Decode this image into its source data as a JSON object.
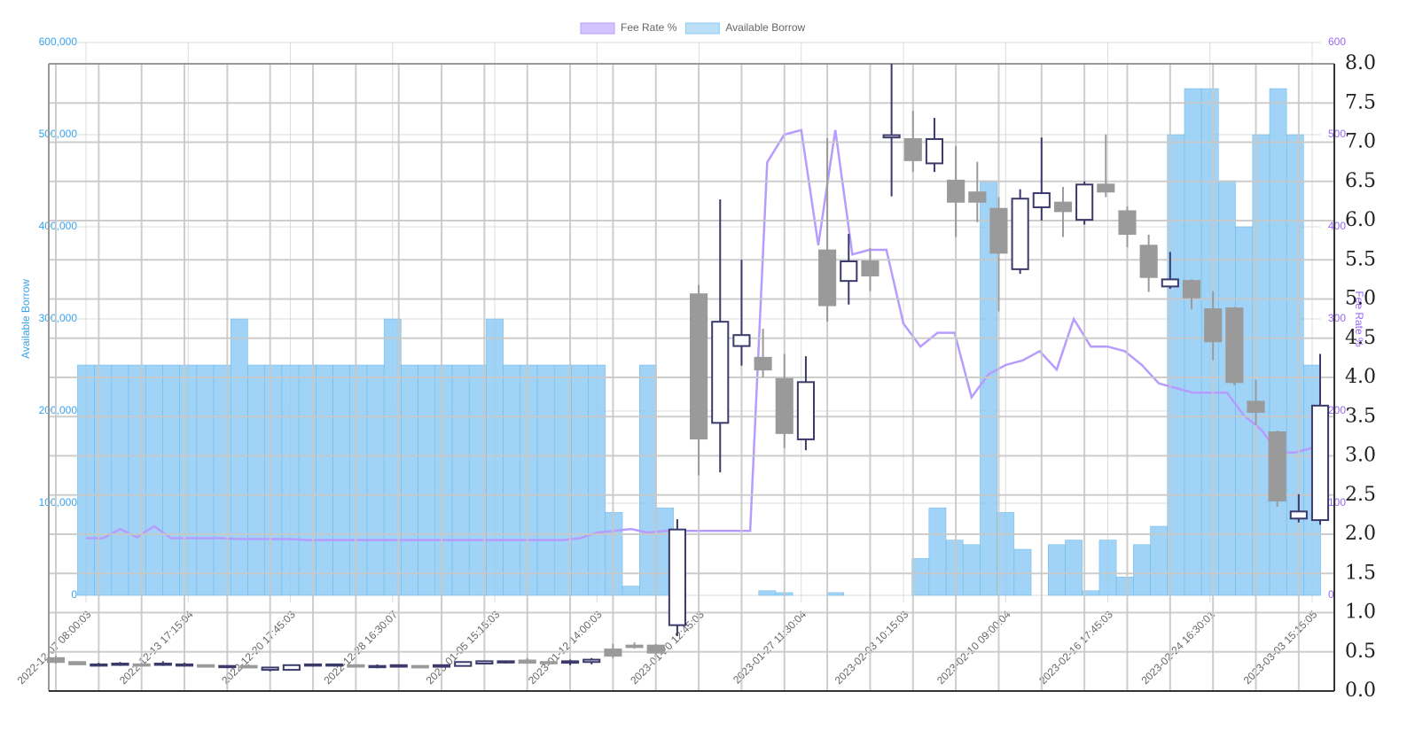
{
  "chart_data": [
    {
      "type": "bar",
      "y_label": "Available Borrow",
      "y2_label": "Fee Rate %",
      "categories": [
        "2022-12-07 08:00:03",
        null,
        null,
        null,
        null,
        null,
        "2022-12-13 17:15:04",
        null,
        null,
        null,
        null,
        null,
        "2022-12-20 17:45:03",
        null,
        null,
        null,
        null,
        null,
        "2022-12-28 16:30:07",
        null,
        null,
        null,
        null,
        null,
        "2023-01-05 15:15:03",
        null,
        null,
        null,
        null,
        null,
        "2023-01-12 14:00:03",
        null,
        null,
        null,
        null,
        null,
        "2023-01-20 12:45:03",
        null,
        null,
        null,
        null,
        null,
        "2023-01-27 11:30:04",
        null,
        null,
        null,
        null,
        null,
        "2023-02-03 10:15:03",
        null,
        null,
        null,
        null,
        null,
        "2023-02-10 09:00:04",
        null,
        null,
        null,
        null,
        null,
        "2023-02-16 17:45:03",
        null,
        null,
        null,
        null,
        null,
        "2023-02-24 16:30:01",
        null,
        null,
        null,
        null,
        null,
        "2023-03-03 15:15:05"
      ],
      "series": [
        {
          "name": "Fee Rate %",
          "type": "line",
          "axis": "y2",
          "color": "#b79cff",
          "values": [
            62,
            62,
            72,
            63,
            75,
            62,
            62,
            62,
            62,
            61,
            61,
            61,
            61,
            60,
            60,
            60,
            60,
            60,
            60,
            60,
            60,
            60,
            60,
            60,
            60,
            60,
            60,
            60,
            60,
            62,
            68,
            70,
            72,
            68,
            70,
            70,
            70,
            70,
            70,
            70,
            470,
            500,
            505,
            380,
            505,
            370,
            375,
            375,
            295,
            270,
            285,
            285,
            215,
            240,
            250,
            255,
            265,
            245,
            300,
            270,
            270,
            265,
            250,
            230,
            225,
            220,
            220,
            220,
            195,
            180,
            155,
            155,
            160
          ]
        },
        {
          "name": "Available Borrow",
          "type": "bar",
          "color": "#8fcbf3",
          "values": [
            250000,
            250000,
            250000,
            250000,
            250000,
            250000,
            250000,
            250000,
            250000,
            300000,
            250000,
            250000,
            250000,
            250000,
            250000,
            250000,
            250000,
            250000,
            300000,
            250000,
            250000,
            250000,
            250000,
            250000,
            300000,
            250000,
            250000,
            250000,
            250000,
            250000,
            250000,
            90000,
            10000,
            250000,
            95000,
            0,
            0,
            0,
            0,
            0,
            5000,
            3000,
            0,
            0,
            3000,
            0,
            0,
            0,
            0,
            40000,
            95000,
            60000,
            55000,
            450000,
            90000,
            50000,
            0,
            55000,
            60000,
            5000,
            60000,
            20000,
            55000,
            75000,
            500000,
            550000,
            550000,
            450000,
            400000,
            500000,
            550000,
            500000,
            250000
          ]
        }
      ],
      "ylim": [
        0,
        600000
      ],
      "yticks": [
        0,
        {
          "value": 100000,
          "label": "100,000"
        },
        {
          "value": 200000,
          "label": "200,000"
        },
        {
          "value": 300000,
          "label": "300,000"
        },
        {
          "value": 400000,
          "label": "400,000"
        },
        {
          "value": 500000,
          "label": "500,000"
        },
        {
          "value": 600000,
          "label": "600,000"
        }
      ],
      "y2lim": [
        0,
        600
      ],
      "y2ticks": [
        0,
        100,
        200,
        300,
        400,
        500,
        600
      ],
      "grid": true
    },
    {
      "type": "candlestick",
      "categories": [
        null,
        null,
        null,
        null,
        null,
        null,
        null,
        null,
        null,
        null,
        null,
        null,
        null,
        null,
        null,
        null,
        null,
        null,
        null,
        null,
        null,
        null,
        null,
        null,
        null,
        null,
        null,
        null,
        null,
        null,
        null,
        null,
        null,
        null,
        null,
        null,
        null,
        null,
        null,
        null,
        null,
        null,
        null,
        null,
        null,
        null,
        null,
        null,
        null,
        null,
        null,
        null,
        null,
        null,
        null,
        null,
        null,
        null,
        null,
        null
      ],
      "up_color": "#3b3a6b",
      "down_color": "#9a9a9a",
      "open": [
        0.42,
        0.37,
        0.33,
        0.34,
        0.34,
        0.34,
        0.34,
        0.33,
        0.31,
        0.32,
        0.27,
        0.27,
        0.33,
        0.33,
        0.33,
        0.31,
        0.31,
        0.32,
        0.31,
        0.32,
        0.35,
        0.37,
        0.39,
        0.37,
        0.36,
        0.37,
        0.53,
        0.58,
        0.58,
        0.84,
        5.06,
        3.42,
        4.4,
        4.25,
        3.98,
        3.21,
        5.62,
        5.23,
        5.48,
        7.06,
        7.04,
        6.73,
        6.51,
        6.36,
        6.15,
        5.38,
        6.17,
        6.23,
        6.01,
        6.46,
        6.12,
        5.68,
        5.16,
        5.23,
        4.87,
        4.88,
        3.69,
        3.3,
        2.2,
        2.18
      ],
      "high": [
        0.45,
        0.38,
        0.36,
        0.37,
        0.36,
        0.38,
        0.36,
        0.34,
        0.33,
        0.34,
        0.3,
        0.34,
        0.35,
        0.35,
        0.34,
        0.34,
        0.34,
        0.33,
        0.34,
        0.38,
        0.39,
        0.39,
        0.42,
        0.4,
        0.4,
        0.42,
        0.6,
        0.62,
        0.6,
        2.19,
        5.18,
        6.27,
        5.5,
        4.62,
        4.3,
        4.27,
        7.05,
        5.83,
        5.65,
        8.0,
        7.4,
        7.31,
        6.95,
        6.75,
        6.3,
        6.4,
        7.06,
        6.43,
        6.5,
        7.1,
        6.18,
        5.82,
        5.6,
        5.25,
        5.1,
        4.9,
        3.97,
        3.32,
        2.51,
        4.3
      ],
      "low": [
        0.35,
        0.33,
        0.32,
        0.32,
        0.32,
        0.32,
        0.33,
        0.31,
        0.29,
        0.3,
        0.25,
        0.27,
        0.31,
        0.31,
        0.31,
        0.29,
        0.3,
        0.3,
        0.3,
        0.32,
        0.34,
        0.35,
        0.36,
        0.35,
        0.33,
        0.34,
        0.42,
        0.54,
        0.46,
        0.7,
        2.75,
        2.79,
        4.15,
        4.0,
        3.1,
        3.07,
        4.71,
        4.93,
        5.1,
        6.31,
        6.62,
        6.62,
        5.79,
        5.98,
        4.84,
        5.32,
        6.0,
        5.79,
        5.95,
        6.3,
        5.66,
        5.09,
        5.13,
        4.87,
        4.22,
        3.9,
        3.39,
        2.35,
        2.15,
        2.12
      ],
      "close": [
        0.37,
        0.34,
        0.34,
        0.35,
        0.33,
        0.35,
        0.34,
        0.31,
        0.32,
        0.3,
        0.3,
        0.33,
        0.34,
        0.34,
        0.31,
        0.32,
        0.33,
        0.3,
        0.33,
        0.37,
        0.38,
        0.38,
        0.36,
        0.36,
        0.38,
        0.4,
        0.45,
        0.56,
        0.49,
        2.06,
        3.22,
        4.71,
        4.54,
        4.1,
        3.29,
        3.94,
        4.92,
        5.48,
        5.3,
        7.09,
        6.77,
        7.04,
        6.24,
        6.24,
        5.59,
        6.28,
        6.35,
        6.12,
        6.46,
        6.37,
        5.83,
        5.28,
        5.25,
        5.02,
        4.46,
        3.94,
        3.56,
        2.43,
        2.29,
        3.64
      ],
      "ylim": [
        0,
        8
      ],
      "yticks": [
        {
          "value": 0,
          "label": "0.0"
        },
        {
          "value": 0.5,
          "label": "0.5"
        },
        {
          "value": 1,
          "label": "1.0"
        },
        {
          "value": 1.5,
          "label": "1.5"
        },
        {
          "value": 2,
          "label": "2.0"
        },
        {
          "value": 2.5,
          "label": "2.5"
        },
        {
          "value": 3,
          "label": "3.0"
        },
        {
          "value": 3.5,
          "label": "3.5"
        },
        {
          "value": 4,
          "label": "4.0"
        },
        {
          "value": 4.5,
          "label": "4.5"
        },
        {
          "value": 5,
          "label": "5.0"
        },
        {
          "value": 5.5,
          "label": "5.5"
        },
        {
          "value": 6,
          "label": "6.0"
        },
        {
          "value": 6.5,
          "label": "6.5"
        },
        {
          "value": 7,
          "label": "7.0"
        },
        {
          "value": 7.5,
          "label": "7.5"
        },
        {
          "value": 8,
          "label": "8.0"
        }
      ],
      "grid": true
    }
  ]
}
